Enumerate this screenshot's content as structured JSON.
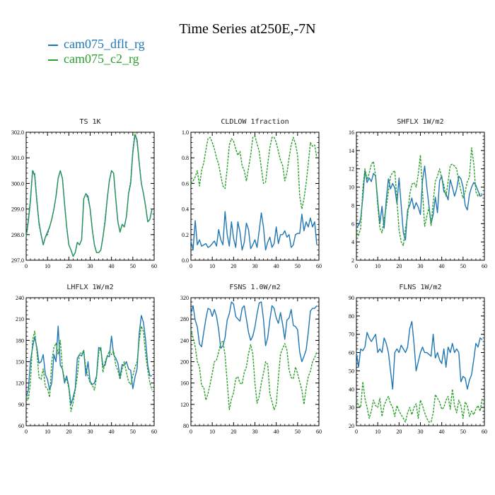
{
  "title": "Time Series at250E,-7N",
  "legend": [
    {
      "label": "cam075_dflt_rg",
      "color": "#1f77b4"
    },
    {
      "label": "cam075_c2_rg",
      "color": "#2ca02c"
    }
  ],
  "chart_data": [
    {
      "type": "line",
      "title": "TS   1K",
      "xlim": [
        0,
        60
      ],
      "ylim": [
        297.0,
        302.0
      ],
      "xticks": [
        "0",
        "10",
        "20",
        "30",
        "40",
        "50",
        "60"
      ],
      "yticks": [
        "297.0",
        "298.0",
        "299.0",
        "300.0",
        "301.0",
        "302.0"
      ],
      "series": [
        {
          "name": "cam075_dflt_rg",
          "values": [
            297.9,
            298.5,
            299.3,
            300.5,
            300.3,
            299.3,
            298.5,
            298.0,
            297.6,
            297.9,
            298.1,
            298.3,
            298.6,
            299.0,
            299.5,
            300.2,
            300.5,
            300.2,
            299.2,
            298.3,
            297.6,
            297.4,
            297.15,
            297.3,
            297.7,
            297.6,
            297.8,
            299.4,
            299.6,
            299.5,
            299.0,
            298.2,
            297.6,
            297.3,
            297.3,
            297.4,
            297.9,
            298.5,
            299.4,
            300.1,
            300.5,
            300.4,
            299.4,
            298.5,
            298.1,
            298.4,
            298.3,
            298.7,
            299.6,
            300.0,
            301.2,
            301.9,
            301.7,
            300.8,
            300.0,
            299.6,
            299.1,
            298.5,
            298.6,
            299.0
          ]
        },
        {
          "name": "cam075_c2_rg",
          "values": [
            297.9,
            298.6,
            299.4,
            300.5,
            300.4,
            299.4,
            298.4,
            298.0,
            297.6,
            297.9,
            298.0,
            298.3,
            298.6,
            299.0,
            299.5,
            300.2,
            300.5,
            300.2,
            299.2,
            298.3,
            297.6,
            297.4,
            297.15,
            297.3,
            297.7,
            297.6,
            297.8,
            299.4,
            299.6,
            299.4,
            299.0,
            298.2,
            297.6,
            297.3,
            297.3,
            297.4,
            297.9,
            298.6,
            299.4,
            300.1,
            300.5,
            300.4,
            299.4,
            298.5,
            298.1,
            298.4,
            298.3,
            298.7,
            299.6,
            300.1,
            301.3,
            302.0,
            301.6,
            300.8,
            300.0,
            299.6,
            299.1,
            298.5,
            298.6,
            299.0
          ]
        }
      ]
    },
    {
      "type": "line",
      "title": "CLDLOW   1fraction",
      "xlim": [
        0,
        60
      ],
      "ylim": [
        0.0,
        1.0
      ],
      "xticks": [
        "0",
        "10",
        "20",
        "30",
        "40",
        "50",
        "60"
      ],
      "yticks": [
        "0.0",
        "0.2",
        "0.4",
        "0.6",
        "0.8",
        "1.0"
      ],
      "series": [
        {
          "name": "cam075_dflt_rg",
          "values": [
            0.15,
            0.08,
            0.31,
            0.12,
            0.16,
            0.11,
            0.12,
            0.13,
            0.1,
            0.11,
            0.13,
            0.15,
            0.11,
            0.24,
            0.16,
            0.12,
            0.38,
            0.2,
            0.11,
            0.3,
            0.17,
            0.1,
            0.3,
            0.22,
            0.08,
            0.14,
            0.29,
            0.24,
            0.09,
            0.12,
            0.16,
            0.1,
            0.23,
            0.37,
            0.26,
            0.08,
            0.14,
            0.18,
            0.1,
            0.13,
            0.26,
            0.13,
            0.2,
            0.2,
            0.23,
            0.18,
            0.2,
            0.1,
            0.12,
            0.2,
            0.21,
            0.21,
            0.36,
            0.23,
            0.3,
            0.26,
            0.33,
            0.26,
            0.3,
            0.12
          ]
        },
        {
          "name": "cam075_c2_rg",
          "values": [
            0.6,
            0.62,
            0.65,
            0.7,
            0.58,
            0.7,
            0.76,
            0.86,
            0.95,
            0.96,
            0.92,
            0.87,
            0.8,
            0.75,
            0.66,
            0.58,
            0.56,
            0.72,
            0.9,
            0.95,
            0.93,
            0.87,
            0.82,
            0.85,
            0.74,
            0.7,
            0.62,
            0.72,
            0.82,
            0.96,
            0.97,
            0.91,
            0.85,
            0.72,
            0.6,
            0.61,
            0.75,
            0.88,
            0.96,
            0.96,
            0.92,
            0.85,
            0.78,
            0.74,
            0.62,
            0.68,
            0.8,
            0.9,
            0.96,
            0.91,
            0.82,
            0.5,
            0.4,
            0.48,
            0.6,
            0.75,
            0.92,
            0.89,
            0.9,
            0.8
          ]
        }
      ]
    },
    {
      "type": "line",
      "title": "SHFLX   1W/m2",
      "xlim": [
        0,
        60
      ],
      "ylim": [
        2,
        16
      ],
      "xticks": [
        "0",
        "10",
        "20",
        "30",
        "40",
        "50",
        "60"
      ],
      "yticks": [
        "2",
        "4",
        "6",
        "8",
        "10",
        "12",
        "14",
        "16"
      ],
      "series": [
        {
          "name": "cam075_dflt_rg",
          "values": [
            5.6,
            5.8,
            6.5,
            8.8,
            11.8,
            10.5,
            11.0,
            10.6,
            11.5,
            11.2,
            8.5,
            6.0,
            7.9,
            5.5,
            8.6,
            10.9,
            9.8,
            10.4,
            9.9,
            8.2,
            11.0,
            8.0,
            5.0,
            4.2,
            7.5,
            8.0,
            8.8,
            7.6,
            8.3,
            7.8,
            7.0,
            10.7,
            12.3,
            10.0,
            8.0,
            6.0,
            7.0,
            8.9,
            7.2,
            10.7,
            11.2,
            9.5,
            9.3,
            8.6,
            10.8,
            10.0,
            9.0,
            9.8,
            11.2,
            10.9,
            10.0,
            8.0,
            7.5,
            9.2,
            10.0,
            10.5,
            10.2,
            9.6,
            9.0,
            9.1
          ]
        },
        {
          "name": "cam075_c2_rg",
          "values": [
            5.0,
            4.7,
            5.5,
            9.8,
            12.0,
            10.8,
            11.5,
            12.5,
            12.8,
            11.2,
            8.0,
            5.5,
            5.0,
            6.5,
            7.8,
            9.5,
            11.2,
            11.6,
            11.8,
            8.6,
            5.3,
            4.0,
            3.6,
            5.5,
            6.8,
            9.2,
            10.3,
            10.5,
            10.0,
            11.4,
            13.5,
            9.5,
            5.7,
            6.8,
            7.8,
            5.8,
            8.4,
            10.6,
            11.2,
            12.0,
            11.0,
            10.2,
            9.0,
            10.6,
            12.4,
            12.5,
            12.3,
            12.0,
            10.6,
            9.6,
            8.8,
            9.5,
            10.6,
            11.1,
            14.3,
            12.6,
            9.5,
            9.0,
            9.3,
            9.2
          ]
        }
      ]
    },
    {
      "type": "line",
      "title": "LHFLX   1W/m2",
      "xlim": [
        0,
        60
      ],
      "ylim": [
        60,
        240
      ],
      "xticks": [
        "0",
        "10",
        "20",
        "30",
        "40",
        "50",
        "60"
      ],
      "yticks": [
        "60",
        "90",
        "120",
        "150",
        "180",
        "210",
        "240"
      ],
      "series": [
        {
          "name": "cam075_dflt_rg",
          "values": [
            100,
            110,
            150,
            170,
            185,
            170,
            148,
            150,
            160,
            132,
            125,
            110,
            120,
            160,
            150,
            200,
            145,
            140,
            120,
            130,
            115,
            90,
            100,
            112,
            155,
            160,
            158,
            166,
            130,
            150,
            122,
            118,
            120,
            130,
            170,
            168,
            143,
            145,
            158,
            157,
            186,
            160,
            155,
            148,
            128,
            146,
            145,
            150,
            140,
            138,
            112,
            128,
            140,
            190,
            215,
            205,
            180,
            145,
            130,
            130
          ]
        },
        {
          "name": "cam075_c2_rg",
          "values": [
            100,
            97,
            120,
            180,
            193,
            165,
            128,
            125,
            140,
            115,
            112,
            100,
            150,
            170,
            176,
            160,
            180,
            140,
            125,
            125,
            113,
            80,
            92,
            110,
            130,
            162,
            162,
            165,
            140,
            130,
            120,
            117,
            110,
            128,
            162,
            170,
            135,
            150,
            158,
            165,
            160,
            165,
            145,
            138,
            125,
            140,
            150,
            135,
            122,
            118,
            130,
            142,
            150,
            180,
            200,
            192,
            160,
            138,
            120,
            110
          ]
        }
      ]
    },
    {
      "type": "line",
      "title": "FSNS   1.0W/m2",
      "xlim": [
        0,
        60
      ],
      "ylim": [
        80,
        320
      ],
      "xticks": [
        "0",
        "10",
        "20",
        "30",
        "40",
        "50",
        "60"
      ],
      "yticks": [
        "80",
        "120",
        "160",
        "200",
        "240",
        "280",
        "320"
      ],
      "series": [
        {
          "name": "cam075_dflt_rg",
          "values": [
            290,
            305,
            278,
            265,
            233,
            228,
            255,
            280,
            300,
            298,
            285,
            298,
            285,
            260,
            225,
            230,
            245,
            278,
            290,
            312,
            308,
            285,
            280,
            276,
            300,
            305,
            280,
            255,
            240,
            248,
            265,
            290,
            310,
            312,
            280,
            230,
            245,
            278,
            305,
            300,
            282,
            272,
            292,
            270,
            242,
            278,
            282,
            298,
            268,
            266,
            260,
            218,
            200,
            210,
            222,
            255,
            295,
            300,
            300,
            305
          ]
        },
        {
          "name": "cam075_c2_rg",
          "values": [
            260,
            245,
            228,
            200,
            190,
            155,
            152,
            128,
            140,
            158,
            178,
            200,
            203,
            218,
            236,
            238,
            212,
            162,
            110,
            130,
            142,
            168,
            172,
            160,
            158,
            180,
            190,
            215,
            232,
            215,
            160,
            122,
            135,
            160,
            178,
            200,
            195,
            140,
            125,
            110,
            120,
            170,
            215,
            225,
            234,
            222,
            185,
            170,
            168,
            190,
            178,
            162,
            147,
            120,
            150,
            172,
            182,
            200,
            208,
            218
          ]
        }
      ]
    },
    {
      "type": "line",
      "title": "FLNS   1W/m2",
      "xlim": [
        0,
        60
      ],
      "ylim": [
        20,
        90
      ],
      "xticks": [
        "0",
        "10",
        "20",
        "30",
        "40",
        "50",
        "60"
      ],
      "yticks": [
        "20",
        "30",
        "40",
        "50",
        "60",
        "70",
        "80",
        "90"
      ],
      "series": [
        {
          "name": "cam075_dflt_rg",
          "values": [
            60,
            52,
            62,
            61,
            63,
            71,
            68,
            66,
            68,
            70,
            60,
            62,
            60,
            68,
            65,
            60,
            50,
            40,
            60,
            62,
            60,
            64,
            62,
            60,
            63,
            73,
            77,
            65,
            50,
            55,
            60,
            63,
            60,
            60,
            59,
            58,
            70,
            57,
            60,
            56,
            54,
            62,
            52,
            63,
            60,
            65,
            60,
            62,
            60,
            44,
            47,
            46,
            40,
            45,
            48,
            56,
            65,
            63,
            68,
            67
          ]
        },
        {
          "name": "cam075_c2_rg",
          "values": [
            34,
            31,
            30,
            44,
            35,
            30,
            24,
            28,
            34,
            31,
            30,
            35,
            25,
            31,
            34,
            36,
            32,
            30,
            25,
            31,
            28,
            26,
            24,
            22,
            27,
            30,
            26,
            30,
            32,
            24,
            34,
            31,
            27,
            24,
            22,
            22,
            27,
            37,
            35,
            33,
            29,
            30,
            34,
            36,
            29,
            40,
            31,
            27,
            34,
            31,
            24,
            33,
            31,
            25,
            28,
            26,
            29,
            31,
            28,
            35
          ]
        }
      ]
    }
  ]
}
